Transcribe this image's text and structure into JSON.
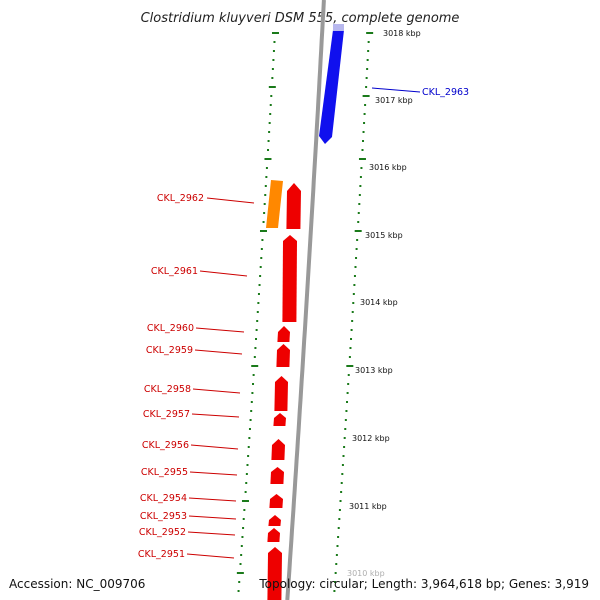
{
  "title": "Clostridium kluyveri DSM 555, complete genome",
  "accession_text": "Accession: NC_009706",
  "topology_text": "Topology: circular; Length: 3,964,618 bp; Genes: 3,919",
  "colors": {
    "forward_cds": "#1010ee",
    "reverse_cds": "#ee0000",
    "other_feature": "#ff8800",
    "backbone": "#999999",
    "tick": "#1a7a1a",
    "label_reverse": "#cc0000",
    "label_forward": "#0000cc"
  },
  "kbp_ticks": [
    {
      "label": "3018 kbp"
    },
    {
      "label": "3017 kbp"
    },
    {
      "label": "3016 kbp"
    },
    {
      "label": "3015 kbp"
    },
    {
      "label": "3014 kbp"
    },
    {
      "label": "3013 kbp"
    },
    {
      "label": "3012 kbp"
    },
    {
      "label": "3011 kbp"
    },
    {
      "label": "3010 kbp"
    }
  ],
  "genes": [
    {
      "label": "CKL_2963",
      "strand": "forward"
    },
    {
      "label": "CKL_2962",
      "strand": "reverse"
    },
    {
      "label": "CKL_2961",
      "strand": "reverse"
    },
    {
      "label": "CKL_2960",
      "strand": "reverse"
    },
    {
      "label": "CKL_2959",
      "strand": "reverse"
    },
    {
      "label": "CKL_2958",
      "strand": "reverse"
    },
    {
      "label": "CKL_2957",
      "strand": "reverse"
    },
    {
      "label": "CKL_2956",
      "strand": "reverse"
    },
    {
      "label": "CKL_2955",
      "strand": "reverse"
    },
    {
      "label": "CKL_2954",
      "strand": "reverse"
    },
    {
      "label": "CKL_2953",
      "strand": "reverse"
    },
    {
      "label": "CKL_2952",
      "strand": "reverse"
    },
    {
      "label": "CKL_2951",
      "strand": "reverse"
    }
  ]
}
